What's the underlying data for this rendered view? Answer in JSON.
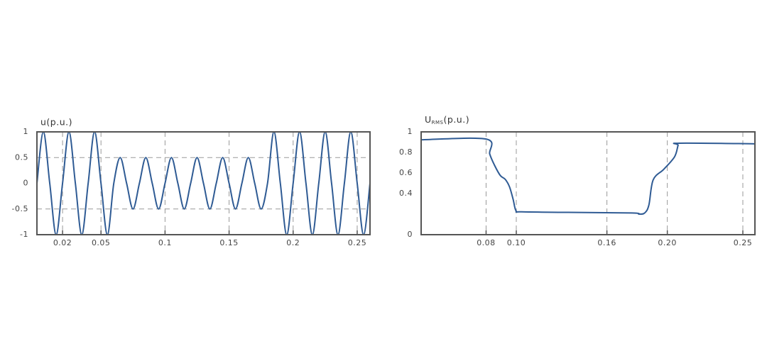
{
  "chart_data": [
    {
      "type": "line",
      "ylabel": "u(p.u.)",
      "x": [
        0,
        0.005,
        0.01,
        0.015,
        0.02,
        0.025,
        0.03,
        0.035,
        0.04,
        0.045,
        0.05,
        0.055,
        0.06,
        0.065,
        0.07,
        0.075,
        0.08,
        0.085,
        0.09,
        0.095,
        0.1,
        0.105,
        0.11,
        0.115,
        0.12,
        0.125,
        0.13,
        0.135,
        0.14,
        0.145,
        0.15,
        0.155,
        0.16,
        0.165,
        0.17,
        0.175,
        0.18,
        0.185,
        0.19,
        0.195,
        0.2,
        0.205,
        0.21,
        0.215,
        0.22,
        0.225,
        0.23,
        0.235,
        0.24,
        0.245,
        0.25,
        0.255,
        0.26
      ],
      "values": [
        0,
        1,
        0,
        -1,
        0,
        1,
        0,
        -1,
        0,
        1,
        0,
        -1,
        0,
        0.5,
        0,
        -0.5,
        0,
        0.5,
        0,
        -0.5,
        0,
        0.5,
        0,
        -0.5,
        0,
        0.5,
        0,
        -0.5,
        0,
        0.5,
        0,
        -0.5,
        0,
        0.5,
        0,
        -0.5,
        0,
        1,
        0,
        -1,
        0,
        1,
        0,
        -1,
        0,
        1,
        0,
        -1,
        0,
        1,
        0,
        -1,
        0
      ],
      "color": "#2f5b94",
      "xlim": [
        0,
        0.26
      ],
      "xticks": [
        0.02,
        0.05,
        0.1,
        0.15,
        0.2,
        0.25
      ],
      "ylim": [
        -1,
        1
      ],
      "yticks": [
        1,
        0.5,
        0,
        -0.5,
        -1
      ],
      "xgrid": true,
      "ygrid": true
    },
    {
      "type": "line",
      "ylabel": "U",
      "ylabel_sub": "RMS",
      "ylabel_suffix": "(p.u.)",
      "x": [
        0.037,
        0.08,
        0.0824,
        0.0856,
        0.0894,
        0.0927,
        0.0955,
        0.0979,
        0.0998,
        0.1035,
        0.1341,
        0.1765,
        0.1812,
        0.185,
        0.1878,
        0.1906,
        0.1977,
        0.2048,
        0.2071,
        0.2081,
        0.258
      ],
      "values": [
        0.923,
        0.93,
        0.785,
        0.675,
        0.576,
        0.538,
        0.466,
        0.344,
        0.233,
        0.222,
        0.217,
        0.211,
        0.2,
        0.211,
        0.289,
        0.532,
        0.637,
        0.758,
        0.868,
        0.89,
        0.884
      ],
      "color": "#2f5b94",
      "xlim": [
        0.037,
        0.258
      ],
      "xticks": [
        0.08,
        {
          "value": 0.1,
          "label": "0.10"
        },
        0.16,
        {
          "value": 0.2,
          "label": "0.20"
        },
        0.25
      ],
      "ylim": [
        0,
        1
      ],
      "yticks": [
        1,
        0.8,
        0.6,
        0.4,
        0
      ],
      "xgrid": true,
      "ygrid": false
    }
  ]
}
